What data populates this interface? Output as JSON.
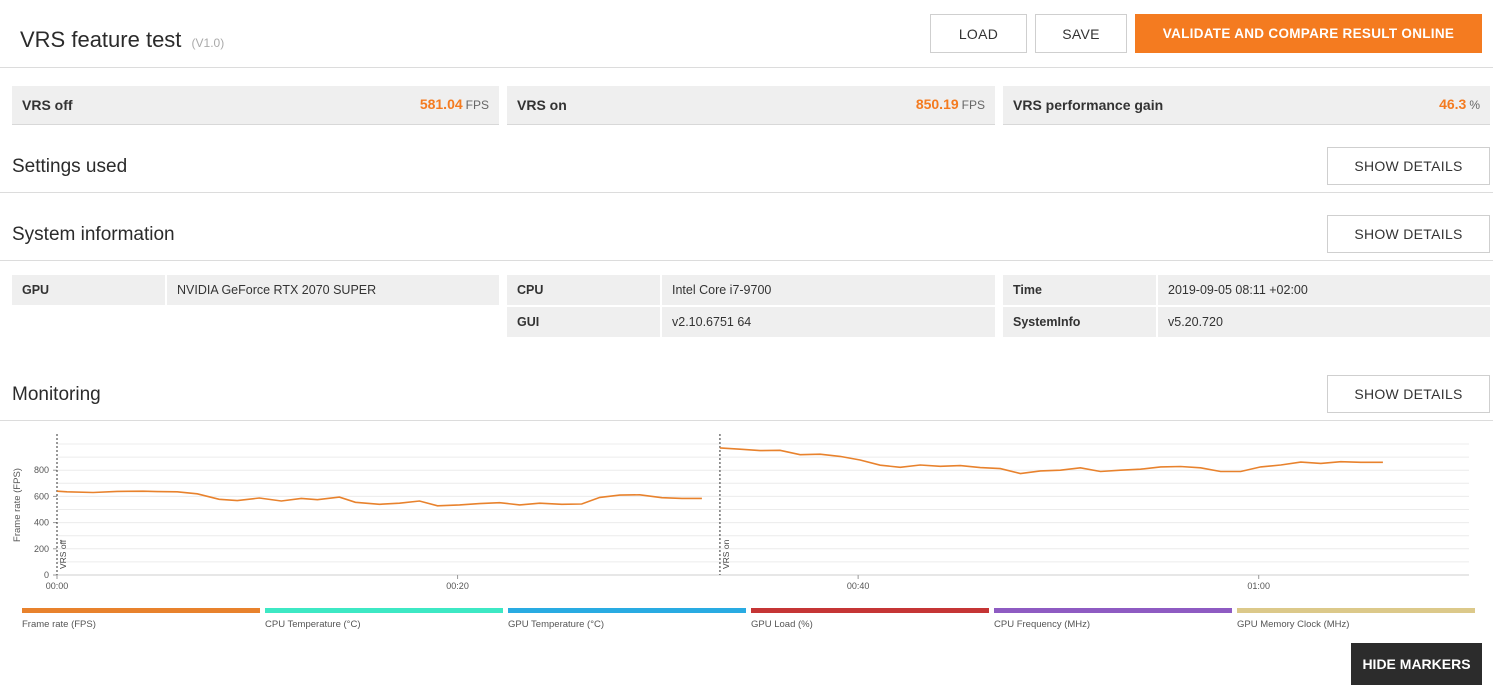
{
  "header": {
    "title": "VRS feature test",
    "version": "(V1.0)",
    "load_label": "LOAD",
    "save_label": "SAVE",
    "validate_label": "VALIDATE AND COMPARE RESULT ONLINE"
  },
  "results": [
    {
      "label": "VRS off",
      "value": "581.04",
      "unit": "FPS"
    },
    {
      "label": "VRS on",
      "value": "850.19",
      "unit": "FPS"
    },
    {
      "label": "VRS performance gain",
      "value": "46.3",
      "unit": "%"
    }
  ],
  "settings": {
    "title": "Settings used",
    "details_label": "SHOW DETAILS"
  },
  "system": {
    "title": "System information",
    "details_label": "SHOW DETAILS",
    "gpu_key": "GPU",
    "gpu_val": "NVIDIA GeForce RTX 2070 SUPER",
    "cpu_key": "CPU",
    "cpu_val": "Intel Core i7-9700",
    "gui_key": "GUI",
    "gui_val": "v2.10.6751 64",
    "time_key": "Time",
    "time_val": "2019-09-05 08:11 +02:00",
    "sysinfo_key": "SystemInfo",
    "sysinfo_val": "v5.20.720"
  },
  "monitoring": {
    "title": "Monitoring",
    "details_label": "SHOW DETAILS",
    "hide_markers_label": "HIDE MARKERS"
  },
  "chart_data": {
    "type": "line",
    "ylabel": "Frame rate (FPS)",
    "ylim": [
      0,
      1000
    ],
    "yticks": [
      0,
      200,
      400,
      600,
      800
    ],
    "xtick_labels": [
      "00:00",
      "00:20",
      "00:40",
      "01:00"
    ],
    "xtick_seconds": [
      0,
      20,
      40,
      60
    ],
    "xlim_seconds": [
      0,
      70.5
    ],
    "grid": true,
    "markers": [
      {
        "label": "VRS off",
        "x_seconds": 0
      },
      {
        "label": "VRS on",
        "x_seconds": 33.1
      }
    ],
    "series": [
      {
        "name": "Frame rate (FPS)",
        "segments": [
          {
            "x": [
              0,
              0.5,
              1.8,
              3,
              4.3,
              5,
              6,
              7,
              8.1,
              9,
              10.1,
              11.2,
              12.2,
              13,
              14.1,
              14.9,
              16.1,
              17.1,
              18.1,
              19,
              20.1,
              21.1,
              22.1,
              23.1,
              24.1,
              25.2,
              26.2,
              27.1,
              28.1,
              29.1,
              30.2,
              31.2,
              32.2
            ],
            "y": [
              640,
              635,
              630,
              638,
              640,
              637,
              635,
              620,
              578,
              568,
              588,
              565,
              585,
              575,
              595,
              555,
              540,
              548,
              565,
              528,
              535,
              545,
              552,
              535,
              548,
              540,
              542,
              592,
              610,
              612,
              590,
              585,
              585
            ]
          },
          {
            "x": [
              33.1,
              34.1,
              35.1,
              36.1,
              37.1,
              38.1,
              39.1,
              40.1,
              41.1,
              42.1,
              43.1,
              44.1,
              45.1,
              46.1,
              47.1,
              48.1,
              49.1,
              50.1,
              51.1,
              52.1,
              53.1,
              54.1,
              55.1,
              56.1,
              57.1,
              58.1,
              59.1,
              60.1,
              61.1,
              62.1,
              63.1,
              64.1,
              65.1,
              66.2
            ],
            "y": [
              970,
              960,
              950,
              952,
              918,
              922,
              905,
              878,
              838,
              822,
              840,
              830,
              835,
              820,
              812,
              775,
              795,
              800,
              818,
              790,
              800,
              808,
              825,
              828,
              818,
              790,
              790,
              825,
              840,
              862,
              852,
              865,
              860,
              860
            ]
          }
        ]
      }
    ],
    "legend": [
      {
        "name": "Frame rate (FPS)",
        "color": "#e8822d"
      },
      {
        "name": "CPU Temperature (°C)",
        "color": "#3de8c4"
      },
      {
        "name": "GPU Temperature (°C)",
        "color": "#29abe2"
      },
      {
        "name": "GPU Load (%)",
        "color": "#c53535"
      },
      {
        "name": "CPU Frequency (MHz)",
        "color": "#8e5bc2"
      },
      {
        "name": "GPU Memory Clock (MHz)",
        "color": "#dcc98a"
      }
    ]
  },
  "colors": {
    "accent": "#f47b20",
    "line": "#e8822d"
  }
}
